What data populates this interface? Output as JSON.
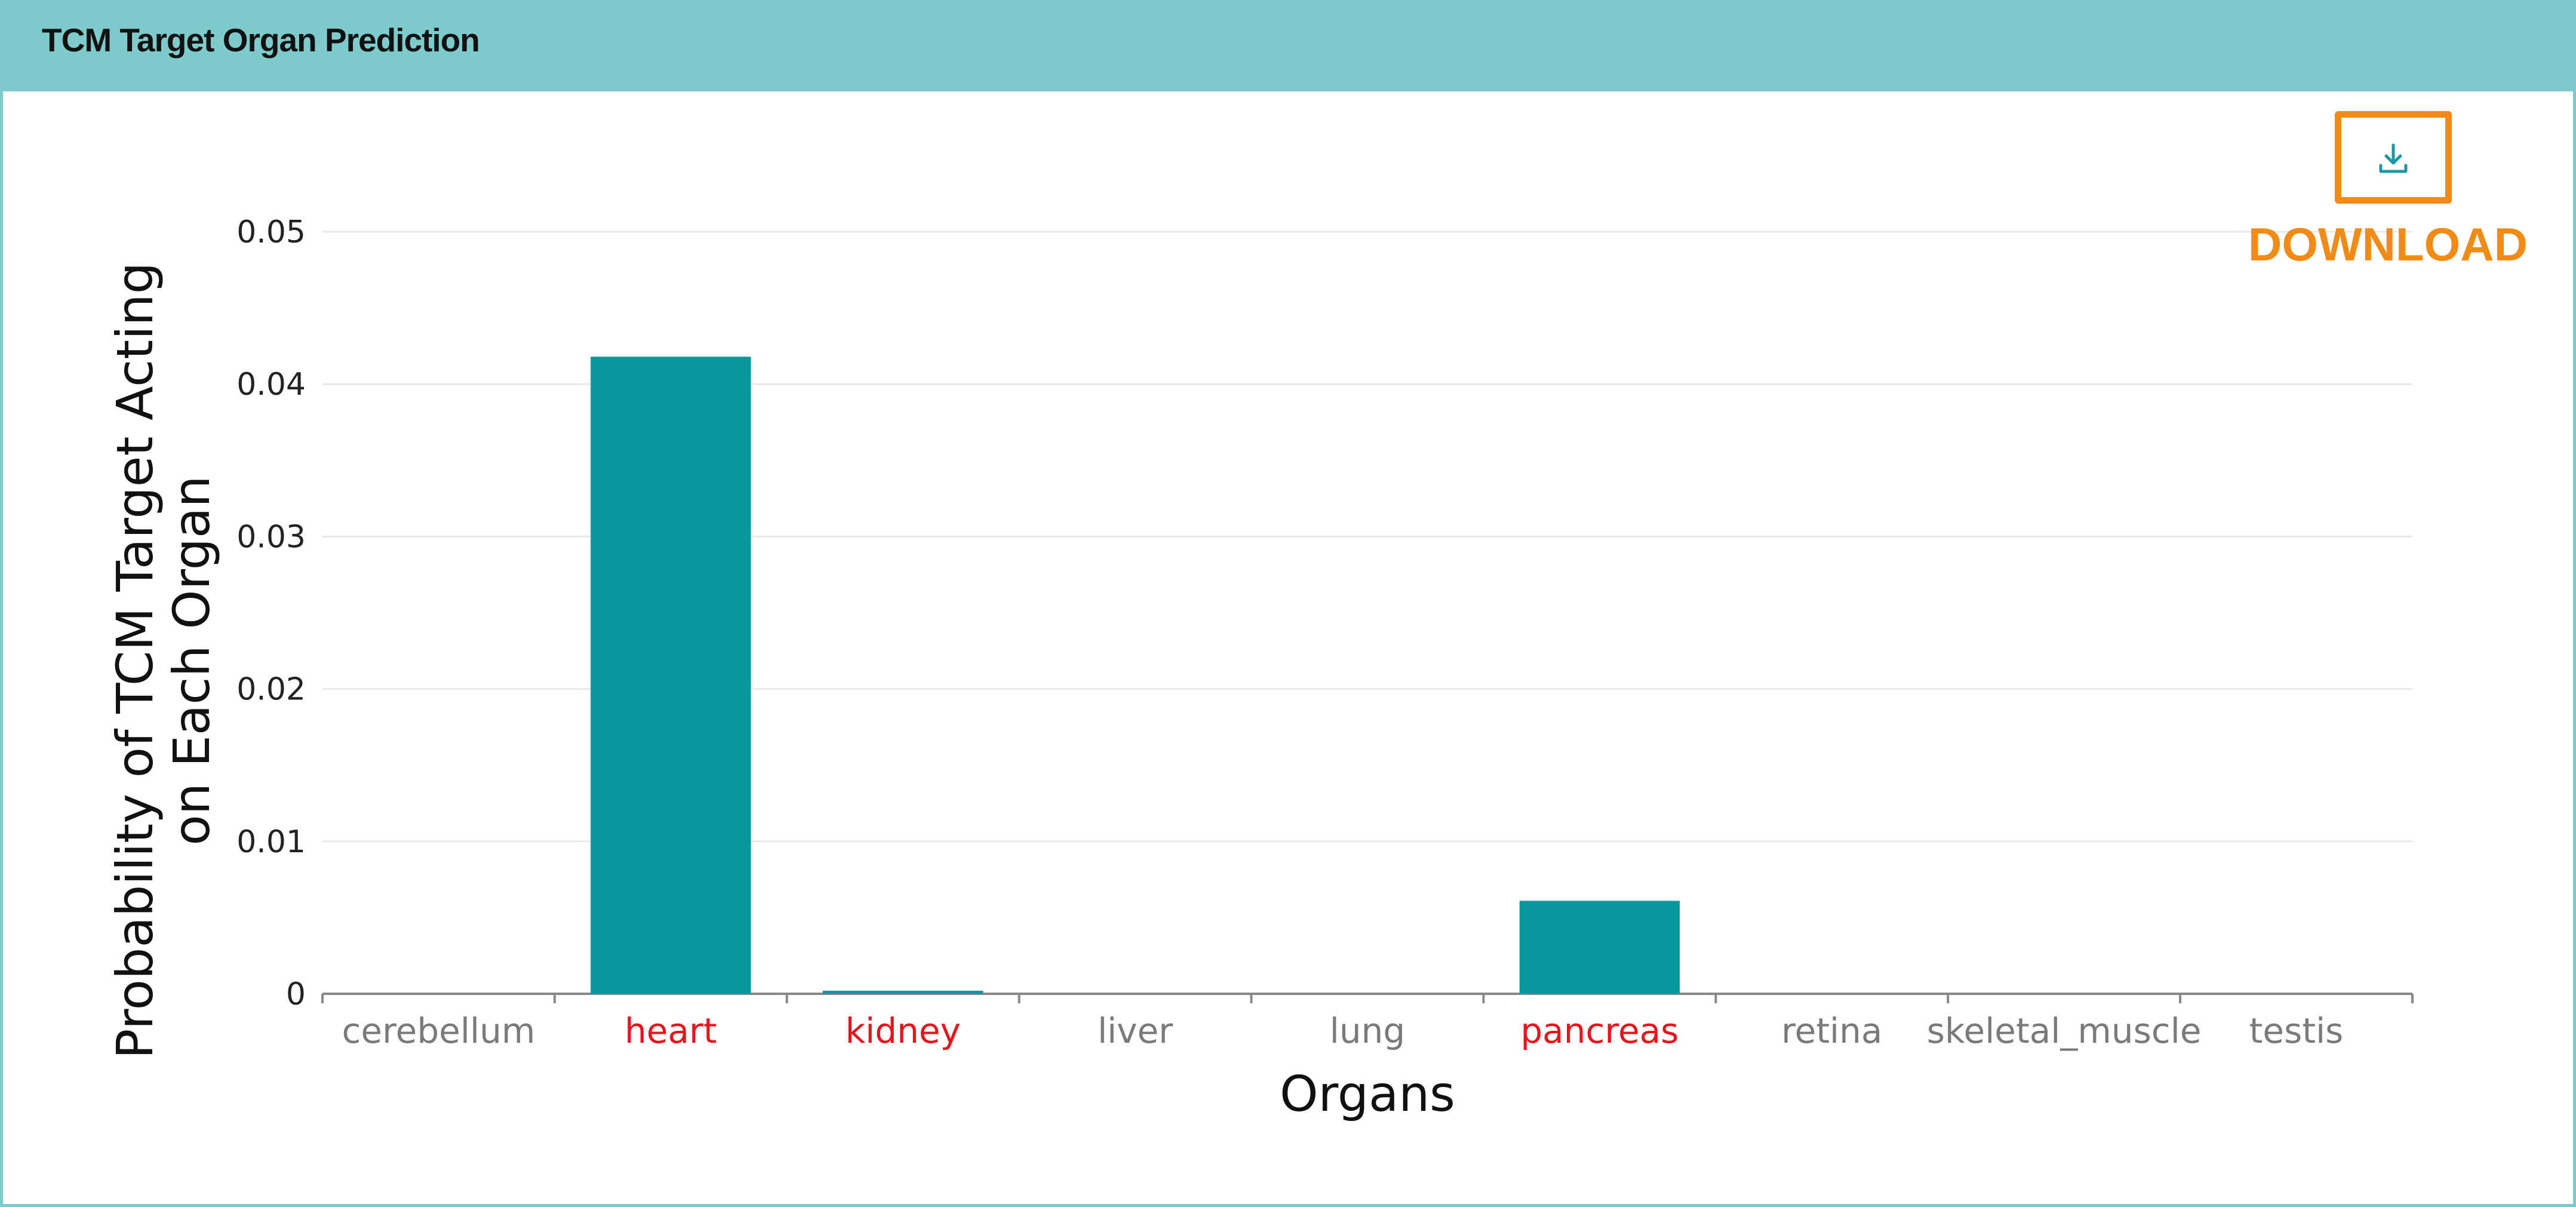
{
  "panel": {
    "title": "TCM Target Organ Prediction"
  },
  "toolbar": {
    "download_label": "DOWNLOAD"
  },
  "colors": {
    "header_bg": "#7ecbcb",
    "bar": "#08979c",
    "highlight_label": "#e8131b",
    "normal_label": "#7a7a7a",
    "download_accent": "#f28a16"
  },
  "chart_data": {
    "type": "bar",
    "categories": [
      "cerebellum",
      "heart",
      "kidney",
      "liver",
      "lung",
      "pancreas",
      "retina",
      "skeletal_muscle",
      "testis"
    ],
    "values": [
      0,
      0.0418,
      0.0002,
      0,
      0,
      0.0061,
      0,
      0,
      0
    ],
    "highlighted": [
      "heart",
      "kidney",
      "pancreas"
    ],
    "ylim": [
      0,
      0.05
    ],
    "yticks": [
      0,
      0.01,
      0.02,
      0.03,
      0.04,
      0.05
    ],
    "ytick_labels": [
      "0",
      "0.01",
      "0.02",
      "0.03",
      "0.04",
      "0.05"
    ],
    "xlabel": "Organs",
    "ylabel_lines": [
      "Probability of TCM Target Acting",
      "on Each Organ"
    ],
    "grid": true,
    "legend": "none"
  }
}
